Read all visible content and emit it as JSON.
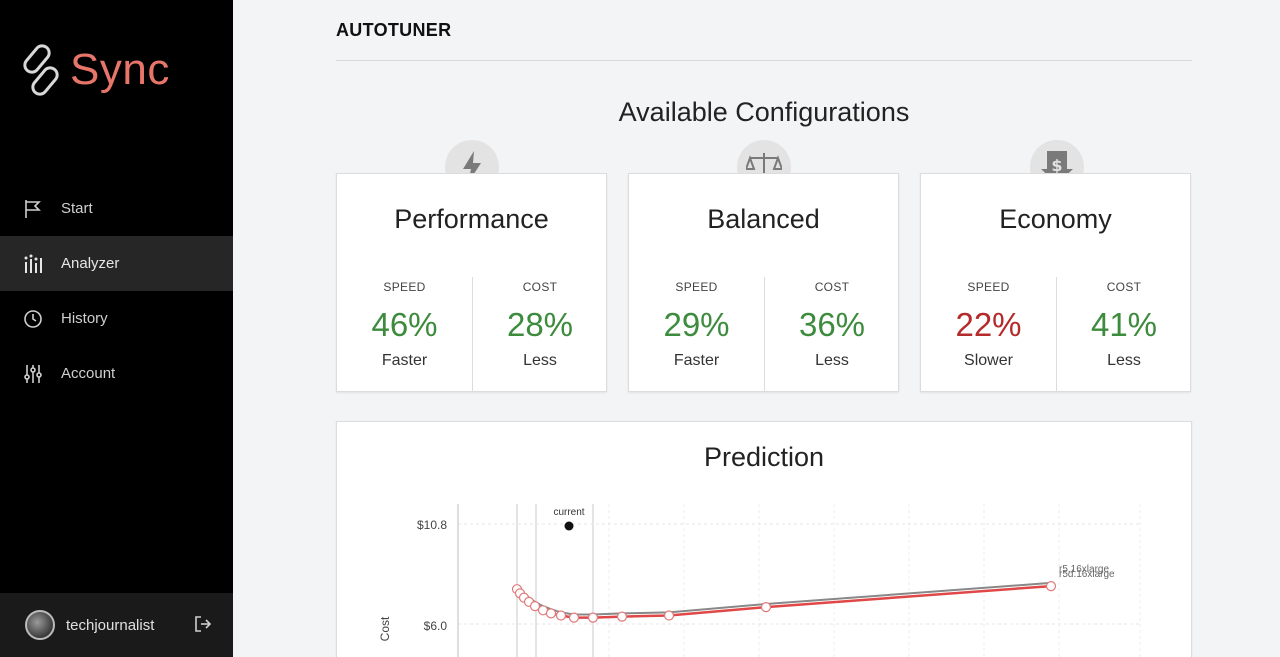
{
  "brand": {
    "name": "Sync",
    "accent": "#e8756a"
  },
  "sidebar": {
    "items": [
      {
        "label": "Start",
        "icon": "flag-icon",
        "active": false
      },
      {
        "label": "Analyzer",
        "icon": "analyzer-icon",
        "active": true
      },
      {
        "label": "History",
        "icon": "history-icon",
        "active": false
      },
      {
        "label": "Account",
        "icon": "sliders-icon",
        "active": false
      }
    ],
    "user": {
      "name": "techjournalist"
    }
  },
  "header": {
    "title": "AUTOTUNER"
  },
  "configs": {
    "title": "Available Configurations",
    "cards": [
      {
        "name": "Performance",
        "icon": "lightning-icon",
        "speed": {
          "label": "SPEED",
          "value": "46%",
          "sub": "Faster"
        },
        "cost": {
          "label": "COST",
          "value": "28%",
          "sub": "Less"
        }
      },
      {
        "name": "Balanced",
        "icon": "scale-icon",
        "speed": {
          "label": "SPEED",
          "value": "29%",
          "sub": "Faster"
        },
        "cost": {
          "label": "COST",
          "value": "36%",
          "sub": "Less"
        }
      },
      {
        "name": "Economy",
        "icon": "dollar-down-icon",
        "speed": {
          "label": "SPEED",
          "value": "22%",
          "sub": "Slower"
        },
        "cost": {
          "label": "COST",
          "value": "41%",
          "sub": "Less"
        }
      }
    ]
  },
  "prediction": {
    "title": "Prediction"
  },
  "chart_data": {
    "type": "line",
    "ylabel": "Cost",
    "y_ticks": [
      "$10.8",
      "$6.0"
    ],
    "annotation": "current",
    "end_labels": [
      "r5.16xlarge",
      "r5d.16xlarge"
    ],
    "colors": {
      "series_a": "#888888",
      "series_b": "#e04848"
    },
    "series": [
      {
        "values": [
          7.9,
          7.7,
          7.5,
          7.3,
          7.1,
          6.9,
          6.75,
          6.6,
          6.5,
          6.5,
          6.55,
          6.6,
          7.0,
          8.0
        ]
      },
      {
        "values": [
          7.7,
          7.5,
          7.3,
          7.1,
          6.9,
          6.7,
          6.55,
          6.45,
          6.35,
          6.35,
          6.4,
          6.45,
          6.85,
          7.85
        ]
      }
    ]
  }
}
